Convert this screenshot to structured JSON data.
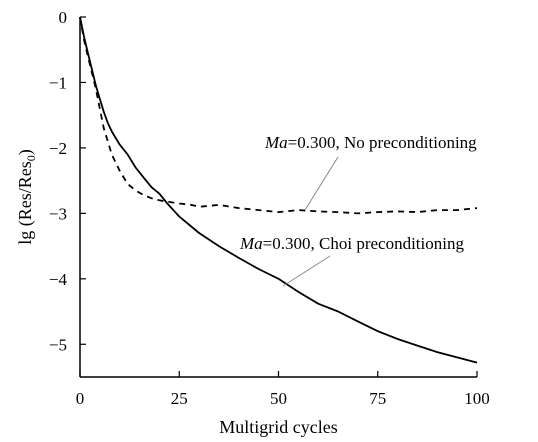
{
  "chart_data": {
    "type": "line",
    "xlabel": "Multigrid cycles",
    "ylabel_main": "lg (Res/Res",
    "ylabel_sub": "0",
    "ylabel_close": ")",
    "xlim": [
      0,
      100
    ],
    "ylim": [
      -5.5,
      0
    ],
    "xticks": [
      0,
      25,
      50,
      75,
      100
    ],
    "yticks": [
      0,
      -1,
      -2,
      -3,
      -4,
      -5
    ],
    "xtick_labels": [
      "0",
      "25",
      "50",
      "75",
      "100"
    ],
    "ytick_labels": [
      "0",
      "−1",
      "−2",
      "−3",
      "−4",
      "−5"
    ],
    "grid": false,
    "colors": {
      "line": "#000000",
      "leader": "#888888"
    },
    "series": [
      {
        "style": "dashed",
        "annotation": {
          "italic": "Ma",
          "rest": "=0.300,  No preconditioning"
        },
        "x": [
          0,
          1,
          2,
          3,
          4,
          5,
          6,
          7,
          8,
          10,
          12,
          14,
          16,
          18,
          20,
          22,
          25,
          28,
          30,
          35,
          40,
          45,
          50,
          55,
          60,
          65,
          70,
          75,
          80,
          85,
          90,
          95,
          100
        ],
        "y": [
          0,
          -0.35,
          -0.6,
          -0.85,
          -1.1,
          -1.4,
          -1.7,
          -1.9,
          -2.1,
          -2.35,
          -2.55,
          -2.65,
          -2.72,
          -2.77,
          -2.8,
          -2.82,
          -2.85,
          -2.87,
          -2.9,
          -2.87,
          -2.92,
          -2.95,
          -2.98,
          -2.95,
          -2.97,
          -2.98,
          -3.0,
          -2.98,
          -2.97,
          -2.98,
          -2.95,
          -2.95,
          -2.92
        ]
      },
      {
        "style": "solid",
        "annotation": {
          "italic": "Ma",
          "rest": "=0.300,  Choi preconditioning"
        },
        "x": [
          0,
          1,
          2,
          3,
          4,
          5,
          6,
          7,
          8,
          10,
          12,
          14,
          16,
          18,
          20,
          22,
          25,
          30,
          35,
          40,
          45,
          50,
          55,
          60,
          65,
          70,
          75,
          80,
          85,
          90,
          95,
          100
        ],
        "y": [
          0,
          -0.3,
          -0.55,
          -0.8,
          -1.05,
          -1.25,
          -1.45,
          -1.62,
          -1.75,
          -1.95,
          -2.1,
          -2.3,
          -2.45,
          -2.6,
          -2.7,
          -2.85,
          -3.05,
          -3.3,
          -3.5,
          -3.68,
          -3.85,
          -4.0,
          -4.2,
          -4.38,
          -4.5,
          -4.65,
          -4.8,
          -4.92,
          -5.02,
          -5.12,
          -5.2,
          -5.28
        ]
      }
    ]
  }
}
